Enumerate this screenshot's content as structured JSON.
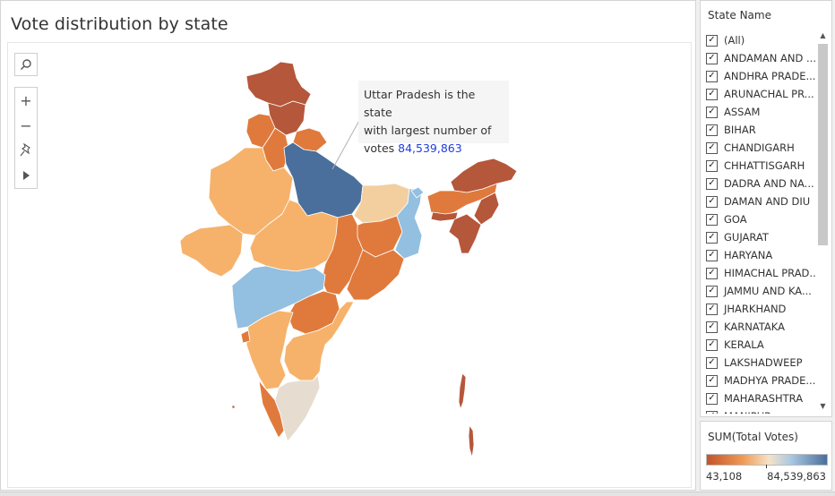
{
  "title": "Vote distribution by state",
  "tooltip": {
    "line1": "Uttar Pradesh is the state",
    "line2": "with largest number of",
    "line3_prefix": "votes ",
    "value": "84,539,863"
  },
  "map_tools": {
    "search_icon": "search-icon",
    "zoom_in": "+",
    "zoom_out": "−",
    "pin_icon": "pin-icon",
    "expand_icon": "play-icon"
  },
  "filter": {
    "title": "State Name",
    "items": [
      {
        "label": "(All)",
        "checked": true
      },
      {
        "label": "ANDAMAN AND ...",
        "checked": true
      },
      {
        "label": "ANDHRA PRADE...",
        "checked": true
      },
      {
        "label": "ARUNACHAL PR...",
        "checked": true
      },
      {
        "label": "ASSAM",
        "checked": true
      },
      {
        "label": "BIHAR",
        "checked": true
      },
      {
        "label": "CHANDIGARH",
        "checked": true
      },
      {
        "label": "CHHATTISGARH",
        "checked": true
      },
      {
        "label": "DADRA AND NA...",
        "checked": true
      },
      {
        "label": "DAMAN AND DIU",
        "checked": true
      },
      {
        "label": "GOA",
        "checked": true
      },
      {
        "label": "GUJARAT",
        "checked": true
      },
      {
        "label": "HARYANA",
        "checked": true
      },
      {
        "label": "HIMACHAL PRAD...",
        "checked": true
      },
      {
        "label": "JAMMU AND KA...",
        "checked": true
      },
      {
        "label": "JHARKHAND",
        "checked": true
      },
      {
        "label": "KARNATAKA",
        "checked": true
      },
      {
        "label": "KERALA",
        "checked": true
      },
      {
        "label": "LAKSHADWEEP",
        "checked": true
      },
      {
        "label": "MADHYA PRADE...",
        "checked": true
      },
      {
        "label": "MAHARASHTRA",
        "checked": true
      },
      {
        "label": "MANIPUR",
        "checked": true
      }
    ]
  },
  "legend": {
    "title": "SUM(Total Votes)",
    "min": "43,108",
    "max": "84,539,863",
    "color_low": "#c4532b",
    "color_mid": "#f5e3c8",
    "color_high": "#4a6f9c"
  },
  "colors": {
    "dark_orange": "#b5573a",
    "orange": "#e07a3c",
    "light_orange": "#f6b26b",
    "peach": "#f3cfa0",
    "beige": "#e6ddd0",
    "light_blue": "#93bfe0",
    "dark_blue": "#4a6f9c"
  }
}
